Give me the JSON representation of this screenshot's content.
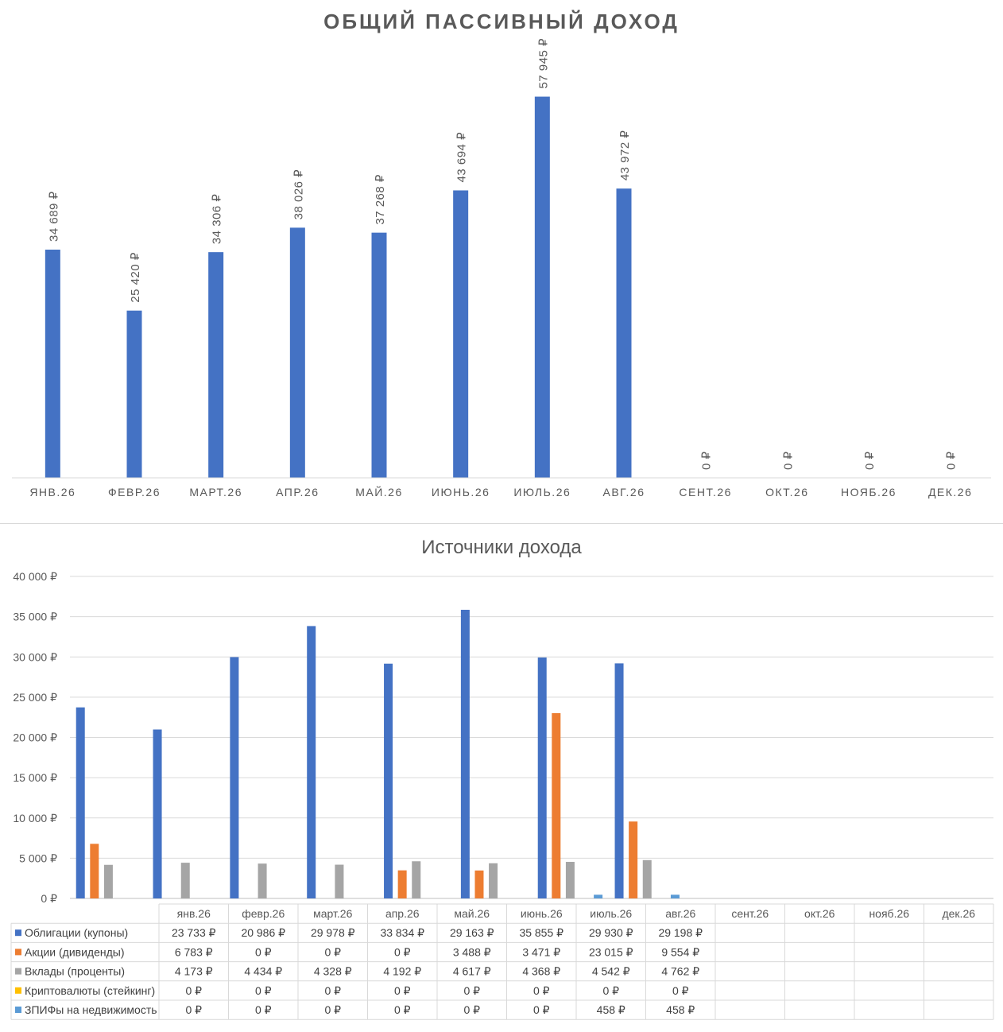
{
  "chart_data": [
    {
      "type": "bar",
      "title": "ОБЩИЙ ПАССИВНЫЙ ДОХОД",
      "categories": [
        "ЯНВ.26",
        "ФЕВР.26",
        "МАРТ.26",
        "АПР.26",
        "МАЙ.26",
        "ИЮНЬ.26",
        "ИЮЛЬ.26",
        "АВГ.26",
        "СЕНТ.26",
        "ОКТ.26",
        "НОЯБ.26",
        "ДЕК.26"
      ],
      "values": [
        34689,
        25420,
        34306,
        38026,
        37268,
        43694,
        57945,
        43972,
        0,
        0,
        0,
        0
      ],
      "labels": [
        "34 689 ₽",
        "25 420 ₽",
        "34 306 ₽",
        "38 026 ₽",
        "37 268 ₽",
        "43 694 ₽",
        "57 945 ₽",
        "43 972 ₽",
        "0 ₽",
        "0 ₽",
        "0 ₽",
        "0 ₽"
      ],
      "ylim": [
        0,
        62000
      ],
      "color": "#4472c4",
      "grid": false
    },
    {
      "type": "bar",
      "title": "Источники дохода",
      "categories": [
        "янв.26",
        "февр.26",
        "март.26",
        "апр.26",
        "май.26",
        "июнь.26",
        "июль.26",
        "авг.26",
        "сент.26",
        "окт.26",
        "нояб.26",
        "дек.26"
      ],
      "ylim": [
        0,
        40000
      ],
      "yticks": [
        "0 ₽",
        "5 000 ₽",
        "10 000 ₽",
        "15 000 ₽",
        "20 000 ₽",
        "25 000 ₽",
        "30 000 ₽",
        "35 000 ₽",
        "40 000 ₽"
      ],
      "grid": true,
      "series": [
        {
          "name": "Облигации (купоны)",
          "color": "#4472c4",
          "values": [
            23733,
            20986,
            29978,
            33834,
            29163,
            35855,
            29930,
            29198,
            null,
            null,
            null,
            null
          ],
          "labels": [
            "23 733 ₽",
            "20 986 ₽",
            "29 978 ₽",
            "33 834 ₽",
            "29 163 ₽",
            "35 855 ₽",
            "29 930 ₽",
            "29 198 ₽",
            "",
            "",
            "",
            ""
          ]
        },
        {
          "name": "Акции (дивиденды)",
          "color": "#ed7d31",
          "values": [
            6783,
            0,
            0,
            0,
            3488,
            3471,
            23015,
            9554,
            null,
            null,
            null,
            null
          ],
          "labels": [
            "6 783 ₽",
            "0 ₽",
            "0 ₽",
            "0 ₽",
            "3 488 ₽",
            "3 471 ₽",
            "23 015 ₽",
            "9 554 ₽",
            "",
            "",
            "",
            ""
          ]
        },
        {
          "name": "Вклады (проценты)",
          "color": "#a5a5a5",
          "values": [
            4173,
            4434,
            4328,
            4192,
            4617,
            4368,
            4542,
            4762,
            null,
            null,
            null,
            null
          ],
          "labels": [
            "4 173 ₽",
            "4 434 ₽",
            "4 328 ₽",
            "4 192 ₽",
            "4 617 ₽",
            "4 368 ₽",
            "4 542 ₽",
            "4 762 ₽",
            "",
            "",
            "",
            ""
          ]
        },
        {
          "name": "Криптовалюты (стейкинг)",
          "color": "#ffc000",
          "values": [
            0,
            0,
            0,
            0,
            0,
            0,
            0,
            0,
            null,
            null,
            null,
            null
          ],
          "labels": [
            "0 ₽",
            "0 ₽",
            "0 ₽",
            "0 ₽",
            "0 ₽",
            "0 ₽",
            "0 ₽",
            "0 ₽",
            "",
            "",
            "",
            ""
          ]
        },
        {
          "name": "ЗПИФы на недвижимость",
          "color": "#5b9bd5",
          "values": [
            0,
            0,
            0,
            0,
            0,
            0,
            458,
            458,
            null,
            null,
            null,
            null
          ],
          "labels": [
            "0 ₽",
            "0 ₽",
            "0 ₽",
            "0 ₽",
            "0 ₽",
            "0 ₽",
            "458 ₽",
            "458 ₽",
            "",
            "",
            "",
            ""
          ]
        }
      ]
    }
  ]
}
